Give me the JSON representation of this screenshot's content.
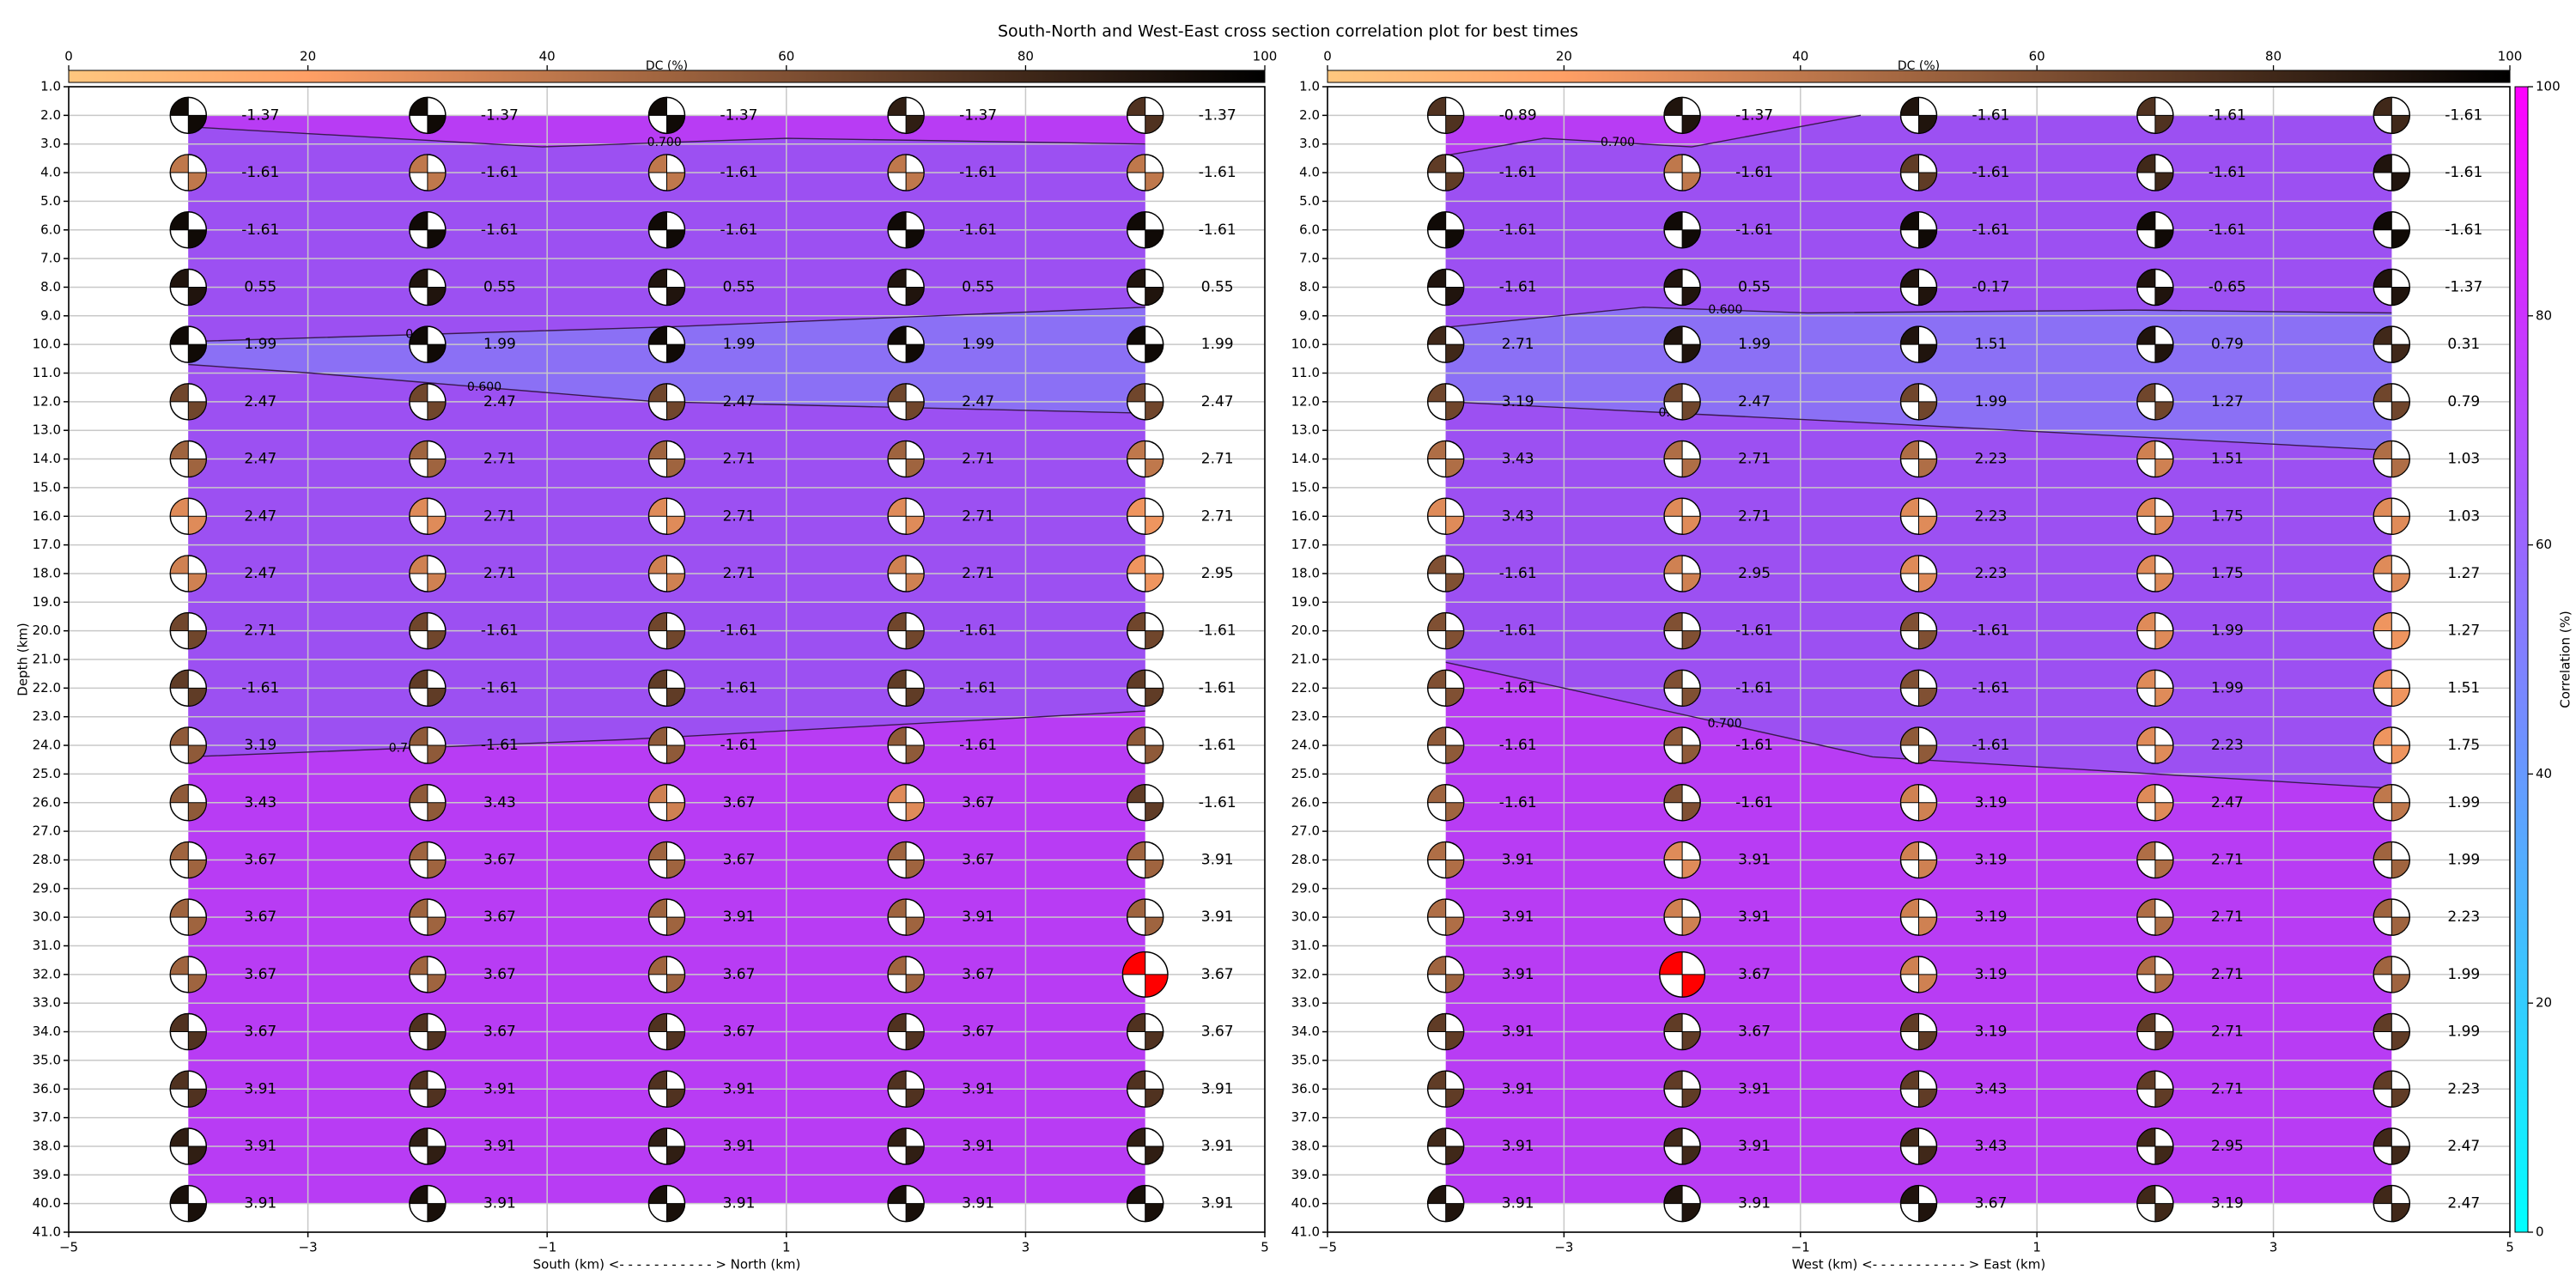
{
  "title": "South-North and West-East cross section correlation plot for best times",
  "colorbar": {
    "label": "Correlation (%)",
    "lim": [
      0,
      100
    ],
    "ticks": [
      0,
      20,
      40,
      60,
      80,
      100
    ],
    "colormap": "cool"
  },
  "chart_data": [
    {
      "type": "beachball",
      "xlabel": "South (km) <- - - - - - - - - - - > North (km)",
      "ylabel": "Depth (km)",
      "xlim": [
        -5,
        5
      ],
      "xticks": [
        {
          "value": -5,
          "label": "−5"
        },
        {
          "value": -3,
          "label": "−3"
        },
        {
          "value": -1,
          "label": "−1"
        },
        1,
        3,
        5
      ],
      "ylim": [
        1,
        41
      ],
      "y_inverted": true,
      "yticks": [
        {
          "value": 1,
          "label": "1.0"
        },
        {
          "value": 2,
          "label": "2.0"
        },
        {
          "value": 3,
          "label": "3.0"
        },
        {
          "value": 4,
          "label": "4.0"
        },
        {
          "value": 5,
          "label": "5.0"
        },
        {
          "value": 6,
          "label": "6.0"
        },
        {
          "value": 7,
          "label": "7.0"
        },
        {
          "value": 8,
          "label": "8.0"
        },
        {
          "value": 9,
          "label": "9.0"
        },
        {
          "value": 10,
          "label": "10.0"
        },
        {
          "value": 11,
          "label": "11.0"
        },
        {
          "value": 12,
          "label": "12.0"
        },
        {
          "value": 13,
          "label": "13.0"
        },
        {
          "value": 14,
          "label": "14.0"
        },
        {
          "value": 15,
          "label": "15.0"
        },
        {
          "value": 16,
          "label": "16.0"
        },
        {
          "value": 17,
          "label": "17.0"
        },
        {
          "value": 18,
          "label": "18.0"
        },
        {
          "value": 19,
          "label": "19.0"
        },
        {
          "value": 20,
          "label": "20.0"
        },
        {
          "value": 21,
          "label": "21.0"
        },
        {
          "value": 22,
          "label": "22.0"
        },
        {
          "value": 23,
          "label": "23.0"
        },
        {
          "value": 24,
          "label": "24.0"
        },
        {
          "value": 25,
          "label": "25.0"
        },
        {
          "value": 26,
          "label": "26.0"
        },
        {
          "value": 27,
          "label": "27.0"
        },
        {
          "value": 28,
          "label": "28.0"
        },
        {
          "value": 29,
          "label": "29.0"
        },
        {
          "value": 30,
          "label": "30.0"
        },
        {
          "value": 31,
          "label": "31.0"
        },
        {
          "value": 32,
          "label": "32.0"
        },
        {
          "value": 33,
          "label": "33.0"
        },
        {
          "value": 34,
          "label": "34.0"
        },
        {
          "value": 35,
          "label": "35.0"
        },
        {
          "value": 36,
          "label": "36.0"
        },
        {
          "value": 37,
          "label": "37.0"
        },
        {
          "value": 38,
          "label": "38.0"
        },
        {
          "value": 39,
          "label": "39.0"
        },
        {
          "value": 40,
          "label": "40.0"
        },
        {
          "value": 41,
          "label": "41.0"
        }
      ],
      "grid": true,
      "columns": [
        -4,
        -2,
        0,
        2,
        4
      ],
      "depths": [
        2,
        4,
        6,
        8,
        10,
        12,
        14,
        16,
        18,
        20,
        22,
        24,
        26,
        28,
        30,
        32,
        34,
        36,
        38,
        40
      ],
      "values": [
        [
          -1.37,
          -1.37,
          -1.37,
          -1.37,
          -1.37
        ],
        [
          -1.61,
          -1.61,
          -1.61,
          -1.61,
          -1.61
        ],
        [
          -1.61,
          -1.61,
          -1.61,
          -1.61,
          -1.61
        ],
        [
          0.55,
          0.55,
          0.55,
          0.55,
          0.55
        ],
        [
          1.99,
          1.99,
          1.99,
          1.99,
          1.99
        ],
        [
          2.47,
          2.47,
          2.47,
          2.47,
          2.47
        ],
        [
          2.47,
          2.71,
          2.71,
          2.71,
          2.71
        ],
        [
          2.47,
          2.71,
          2.71,
          2.71,
          2.71
        ],
        [
          2.47,
          2.71,
          2.71,
          2.71,
          2.95
        ],
        [
          2.71,
          -1.61,
          -1.61,
          -1.61,
          -1.61
        ],
        [
          -1.61,
          -1.61,
          -1.61,
          -1.61,
          -1.61
        ],
        [
          3.19,
          -1.61,
          -1.61,
          -1.61,
          -1.61
        ],
        [
          3.43,
          3.43,
          3.67,
          3.67,
          -1.61
        ],
        [
          3.67,
          3.67,
          3.67,
          3.67,
          3.91
        ],
        [
          3.67,
          3.67,
          3.91,
          3.91,
          3.91
        ],
        [
          3.67,
          3.67,
          3.67,
          3.67,
          3.67
        ],
        [
          3.67,
          3.67,
          3.67,
          3.67,
          3.67
        ],
        [
          3.91,
          3.91,
          3.91,
          3.91,
          3.91
        ],
        [
          3.91,
          3.91,
          3.91,
          3.91,
          3.91
        ],
        [
          3.91,
          3.91,
          3.91,
          3.91,
          3.91
        ]
      ],
      "dc": [
        [
          95,
          95,
          95,
          85,
          75
        ],
        [
          40,
          40,
          40,
          40,
          40
        ],
        [
          95,
          95,
          95,
          95,
          95
        ],
        [
          90,
          90,
          90,
          90,
          90
        ],
        [
          95,
          95,
          95,
          95,
          95
        ],
        [
          65,
          65,
          65,
          65,
          65
        ],
        [
          50,
          50,
          50,
          50,
          40
        ],
        [
          30,
          30,
          30,
          30,
          25
        ],
        [
          35,
          35,
          35,
          35,
          25
        ],
        [
          65,
          65,
          65,
          65,
          65
        ],
        [
          70,
          70,
          70,
          70,
          70
        ],
        [
          55,
          55,
          55,
          55,
          55
        ],
        [
          55,
          55,
          35,
          30,
          70
        ],
        [
          50,
          50,
          50,
          50,
          50
        ],
        [
          50,
          50,
          50,
          50,
          50
        ],
        [
          50,
          50,
          50,
          50,
          50
        ],
        [
          75,
          75,
          75,
          75,
          75
        ],
        [
          75,
          75,
          75,
          75,
          75
        ],
        [
          85,
          85,
          85,
          85,
          85
        ],
        [
          92,
          92,
          92,
          92,
          92
        ]
      ],
      "best": {
        "x": 4,
        "depth": 32
      },
      "best_color": "red",
      "dc_colorbar": {
        "label": "DC (%)",
        "lim": [
          0,
          100
        ],
        "ticks": [
          0,
          20,
          40,
          60,
          80,
          100
        ],
        "colormap": "copper_r"
      },
      "fill_colors": {
        "high": "#b83cf4",
        "mid": "#9c50f2",
        "low": "#8b70f5"
      },
      "contours": [
        {
          "level": 0.7,
          "label": "0.700",
          "x": [
            -4,
            -1.04,
            1.0,
            4
          ],
          "y": [
            2.4,
            3.1,
            2.8,
            3.0
          ]
        },
        {
          "level": 0.6,
          "label": "0.600",
          "x": [
            -4,
            -0.08,
            4
          ],
          "y": [
            9.9,
            9.4,
            8.7
          ]
        },
        {
          "level": 0.6,
          "label": "0.600",
          "x": [
            -4,
            -2.97,
            -0.08,
            4
          ],
          "y": [
            10.7,
            11.0,
            12.0,
            12.4
          ]
        },
        {
          "level": 0.7,
          "label": "0.700",
          "x": [
            -4,
            -0.36,
            4
          ],
          "y": [
            24.4,
            23.8,
            22.8
          ]
        }
      ]
    },
    {
      "type": "beachball",
      "xlabel": "West (km) <- - - - - - - - - - - > East (km)",
      "xlim": [
        -5,
        5
      ],
      "xticks": [
        {
          "value": -5,
          "label": "−5"
        },
        {
          "value": -3,
          "label": "−3"
        },
        {
          "value": -1,
          "label": "−1"
        },
        1,
        3,
        5
      ],
      "ylim": [
        1,
        41
      ],
      "y_inverted": true,
      "yticks": [
        {
          "value": 1,
          "label": "1.0"
        },
        {
          "value": 2,
          "label": "2.0"
        },
        {
          "value": 3,
          "label": "3.0"
        },
        {
          "value": 4,
          "label": "4.0"
        },
        {
          "value": 5,
          "label": "5.0"
        },
        {
          "value": 6,
          "label": "6.0"
        },
        {
          "value": 7,
          "label": "7.0"
        },
        {
          "value": 8,
          "label": "8.0"
        },
        {
          "value": 9,
          "label": "9.0"
        },
        {
          "value": 10,
          "label": "10.0"
        },
        {
          "value": 11,
          "label": "11.0"
        },
        {
          "value": 12,
          "label": "12.0"
        },
        {
          "value": 13,
          "label": "13.0"
        },
        {
          "value": 14,
          "label": "14.0"
        },
        {
          "value": 15,
          "label": "15.0"
        },
        {
          "value": 16,
          "label": "16.0"
        },
        {
          "value": 17,
          "label": "17.0"
        },
        {
          "value": 18,
          "label": "18.0"
        },
        {
          "value": 19,
          "label": "19.0"
        },
        {
          "value": 20,
          "label": "20.0"
        },
        {
          "value": 21,
          "label": "21.0"
        },
        {
          "value": 22,
          "label": "22.0"
        },
        {
          "value": 23,
          "label": "23.0"
        },
        {
          "value": 24,
          "label": "24.0"
        },
        {
          "value": 25,
          "label": "25.0"
        },
        {
          "value": 26,
          "label": "26.0"
        },
        {
          "value": 27,
          "label": "27.0"
        },
        {
          "value": 28,
          "label": "28.0"
        },
        {
          "value": 29,
          "label": "29.0"
        },
        {
          "value": 30,
          "label": "30.0"
        },
        {
          "value": 31,
          "label": "31.0"
        },
        {
          "value": 32,
          "label": "32.0"
        },
        {
          "value": 33,
          "label": "33.0"
        },
        {
          "value": 34,
          "label": "34.0"
        },
        {
          "value": 35,
          "label": "35.0"
        },
        {
          "value": 36,
          "label": "36.0"
        },
        {
          "value": 37,
          "label": "37.0"
        },
        {
          "value": 38,
          "label": "38.0"
        },
        {
          "value": 39,
          "label": "39.0"
        },
        {
          "value": 40,
          "label": "40.0"
        },
        {
          "value": 41,
          "label": "41.0"
        }
      ],
      "grid": true,
      "columns": [
        -4,
        -2,
        0,
        2,
        4
      ],
      "depths": [
        2,
        4,
        6,
        8,
        10,
        12,
        14,
        16,
        18,
        20,
        22,
        24,
        26,
        28,
        30,
        32,
        34,
        36,
        38,
        40
      ],
      "values": [
        [
          -0.89,
          -1.37,
          -1.61,
          -1.61,
          -1.61
        ],
        [
          -1.61,
          -1.61,
          -1.61,
          -1.61,
          -1.61
        ],
        [
          -1.61,
          -1.61,
          -1.61,
          -1.61,
          -1.61
        ],
        [
          -1.61,
          0.55,
          -0.17,
          -0.65,
          -1.37
        ],
        [
          2.71,
          1.99,
          1.51,
          0.79,
          0.31
        ],
        [
          3.19,
          2.47,
          1.99,
          1.27,
          0.79
        ],
        [
          3.43,
          2.71,
          2.23,
          1.51,
          1.03
        ],
        [
          3.43,
          2.71,
          2.23,
          1.75,
          1.03
        ],
        [
          -1.61,
          2.95,
          2.23,
          1.75,
          1.27
        ],
        [
          -1.61,
          -1.61,
          -1.61,
          1.99,
          1.27
        ],
        [
          -1.61,
          -1.61,
          -1.61,
          1.99,
          1.51
        ],
        [
          -1.61,
          -1.61,
          -1.61,
          2.23,
          1.75
        ],
        [
          -1.61,
          -1.61,
          3.19,
          2.47,
          1.99
        ],
        [
          3.91,
          3.91,
          3.19,
          2.71,
          1.99
        ],
        [
          3.91,
          3.91,
          3.19,
          2.71,
          2.23
        ],
        [
          3.91,
          3.67,
          3.19,
          2.71,
          1.99
        ],
        [
          3.91,
          3.67,
          3.19,
          2.71,
          1.99
        ],
        [
          3.91,
          3.91,
          3.43,
          2.71,
          2.23
        ],
        [
          3.91,
          3.91,
          3.43,
          2.95,
          2.47
        ],
        [
          3.91,
          3.91,
          3.67,
          3.19,
          2.47
        ]
      ],
      "dc": [
        [
          75,
          90,
          90,
          75,
          80
        ],
        [
          70,
          40,
          70,
          80,
          90
        ],
        [
          95,
          95,
          95,
          95,
          95
        ],
        [
          90,
          90,
          90,
          90,
          90
        ],
        [
          80,
          90,
          90,
          90,
          80
        ],
        [
          65,
          65,
          65,
          65,
          65
        ],
        [
          45,
          45,
          45,
          35,
          45
        ],
        [
          30,
          30,
          30,
          30,
          30
        ],
        [
          60,
          35,
          30,
          30,
          30
        ],
        [
          60,
          60,
          60,
          30,
          25
        ],
        [
          60,
          60,
          60,
          30,
          25
        ],
        [
          55,
          55,
          55,
          30,
          25
        ],
        [
          50,
          60,
          35,
          30,
          40
        ],
        [
          45,
          30,
          35,
          45,
          50
        ],
        [
          45,
          35,
          35,
          45,
          50
        ],
        [
          50,
          50,
          35,
          45,
          50
        ],
        [
          70,
          70,
          70,
          70,
          70
        ],
        [
          70,
          70,
          70,
          70,
          70
        ],
        [
          80,
          80,
          80,
          80,
          80
        ],
        [
          90,
          90,
          90,
          80,
          80
        ]
      ],
      "best": {
        "x": -2,
        "depth": 32
      },
      "best_color": "red",
      "dc_colorbar": {
        "label": "DC (%)",
        "lim": [
          0,
          100
        ],
        "ticks": [
          0,
          20,
          40,
          60,
          80,
          100
        ],
        "colormap": "copper_r"
      },
      "fill_colors": {
        "high": "#b83cf4",
        "mid": "#9c50f2",
        "low": "#8b70f5"
      },
      "contours": [
        {
          "level": 0.7,
          "label": "0.700",
          "x": [
            -4,
            -3.17,
            -1.92,
            -0.49
          ],
          "y": [
            3.4,
            2.8,
            3.1,
            2.0
          ]
        },
        {
          "level": 0.6,
          "label": "0.600",
          "x": [
            -4,
            -2.33,
            -0.94,
            1.83,
            4
          ],
          "y": [
            9.4,
            8.7,
            8.9,
            8.8,
            8.9
          ]
        },
        {
          "level": 0.6,
          "label": "0.600",
          "x": [
            -4,
            -0.11,
            4
          ],
          "y": [
            12.0,
            12.8,
            13.7
          ]
        },
        {
          "level": 0.7,
          "label": "0.700",
          "x": [
            -4,
            -2.89,
            -0.39,
            4
          ],
          "y": [
            21.1,
            22.1,
            24.4,
            25.5
          ]
        }
      ]
    }
  ]
}
